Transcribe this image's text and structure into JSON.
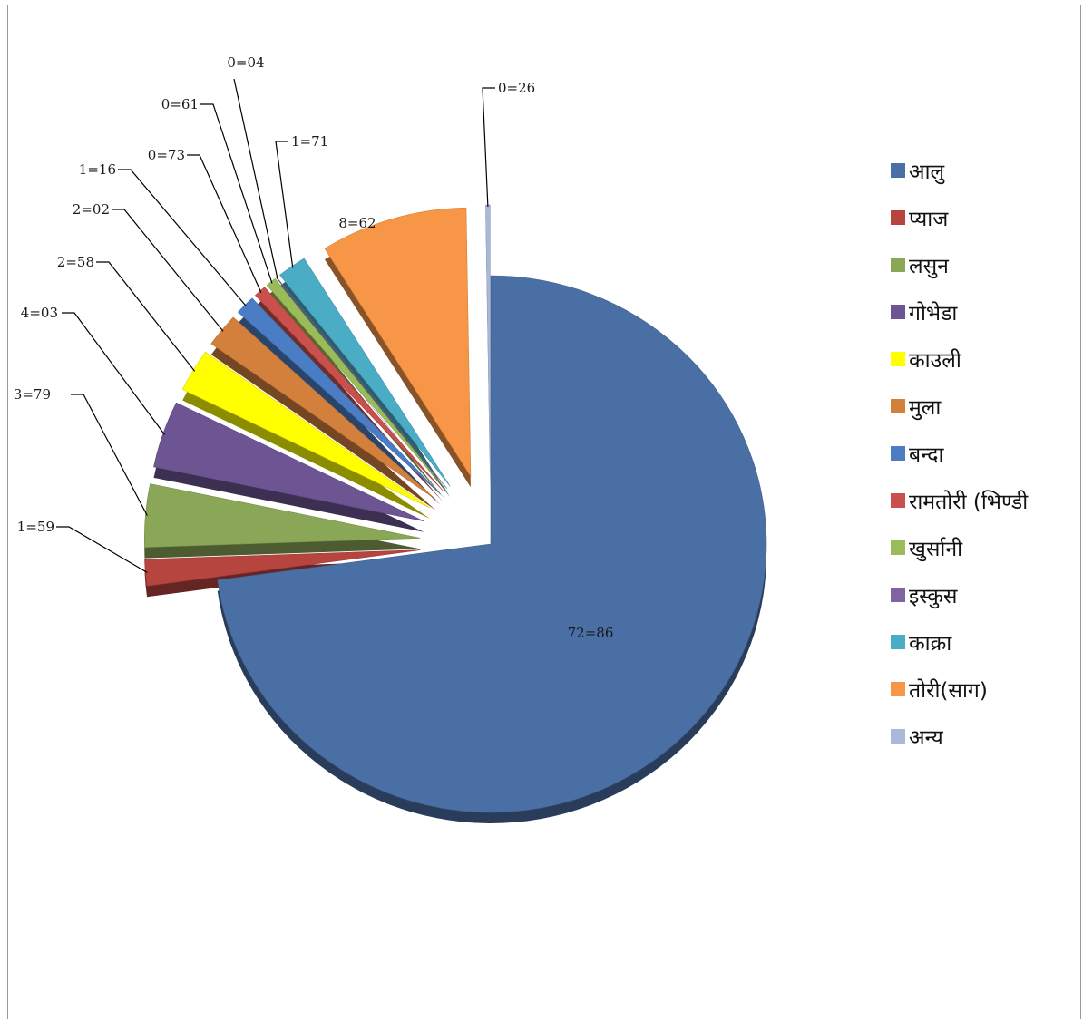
{
  "chart_data": {
    "type": "pie",
    "title": "",
    "legend_position": "right",
    "slices": [
      {
        "name": "आलु",
        "label": "72=86",
        "value": 72.86,
        "color": "#4a6fa5"
      },
      {
        "name": "प्याज",
        "label": "1=59",
        "value": 1.59,
        "color": "#b6443f"
      },
      {
        "name": "लसुन",
        "label": "3=79",
        "value": 3.79,
        "color": "#8aa657"
      },
      {
        "name": "गोभेडा",
        "label": "4=03",
        "value": 4.03,
        "color": "#6d5594"
      },
      {
        "name": "काउली",
        "label": "2=58",
        "value": 2.58,
        "color": "#ffff00"
      },
      {
        "name": "मुला",
        "label": "2=02",
        "value": 2.02,
        "color": "#d3803d"
      },
      {
        "name": "बन्दा",
        "label": "1=16",
        "value": 1.16,
        "color": "#4a7dc4"
      },
      {
        "name": "रामतोरी (भिण्डी",
        "label": "0=73",
        "value": 0.73,
        "color": "#c9504c"
      },
      {
        "name": "खुर्सानी",
        "label": "0=61",
        "value": 0.61,
        "color": "#9bbb59"
      },
      {
        "name": "इस्कुस",
        "label": "0=04",
        "value": 0.04,
        "color": "#8064a2"
      },
      {
        "name": "काक्रा",
        "label": "1=71",
        "value": 1.71,
        "color": "#4bacc6"
      },
      {
        "name": "तोरी(साग)",
        "label": "8=62",
        "value": 8.62,
        "color": "#f79646"
      },
      {
        "name": "अन्य",
        "label": "0=26",
        "value": 0.26,
        "color": "#aab9d9"
      }
    ]
  }
}
